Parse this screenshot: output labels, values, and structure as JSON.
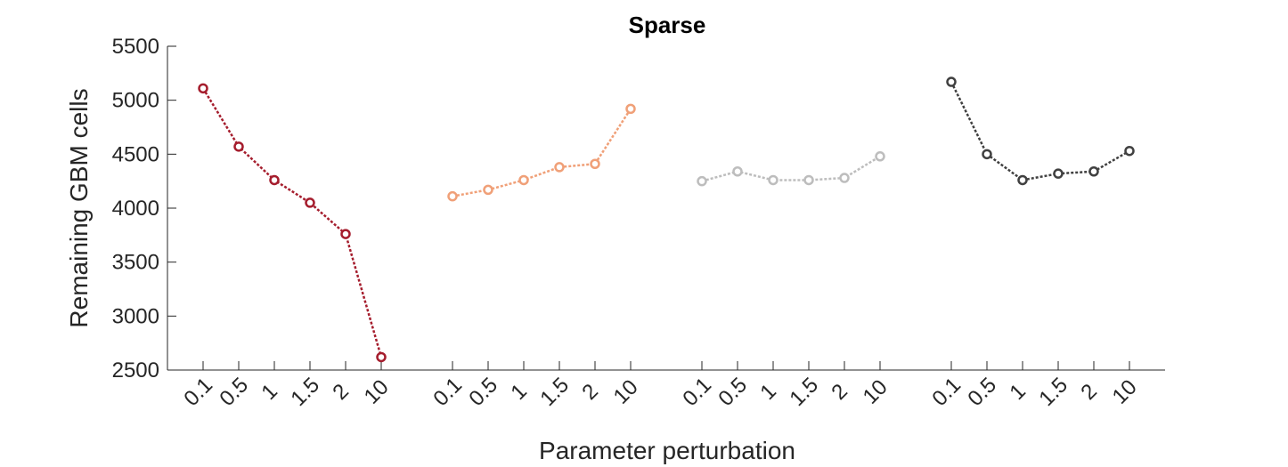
{
  "chart_data": {
    "type": "line",
    "title": "Sparse",
    "xlabel": "Parameter perturbation",
    "ylabel": "Remaining GBM cells",
    "ylim": [
      2500,
      5500
    ],
    "yticks": [
      2500,
      3000,
      3500,
      4000,
      4500,
      5000,
      5500
    ],
    "x_tick_labels": [
      "0.1",
      "0.5",
      "1",
      "1.5",
      "2",
      "10"
    ],
    "grid": false,
    "series": [
      {
        "color": "#a51d2d",
        "values": [
          5110,
          4570,
          4260,
          4050,
          3760,
          2620
        ]
      },
      {
        "color": "#f0a078",
        "values": [
          4110,
          4170,
          4260,
          4380,
          4410,
          4920
        ]
      },
      {
        "color": "#bdbdbd",
        "values": [
          4250,
          4340,
          4260,
          4260,
          4280,
          4480
        ]
      },
      {
        "color": "#404040",
        "values": [
          5170,
          4500,
          4260,
          4320,
          4340,
          4530
        ]
      }
    ]
  }
}
